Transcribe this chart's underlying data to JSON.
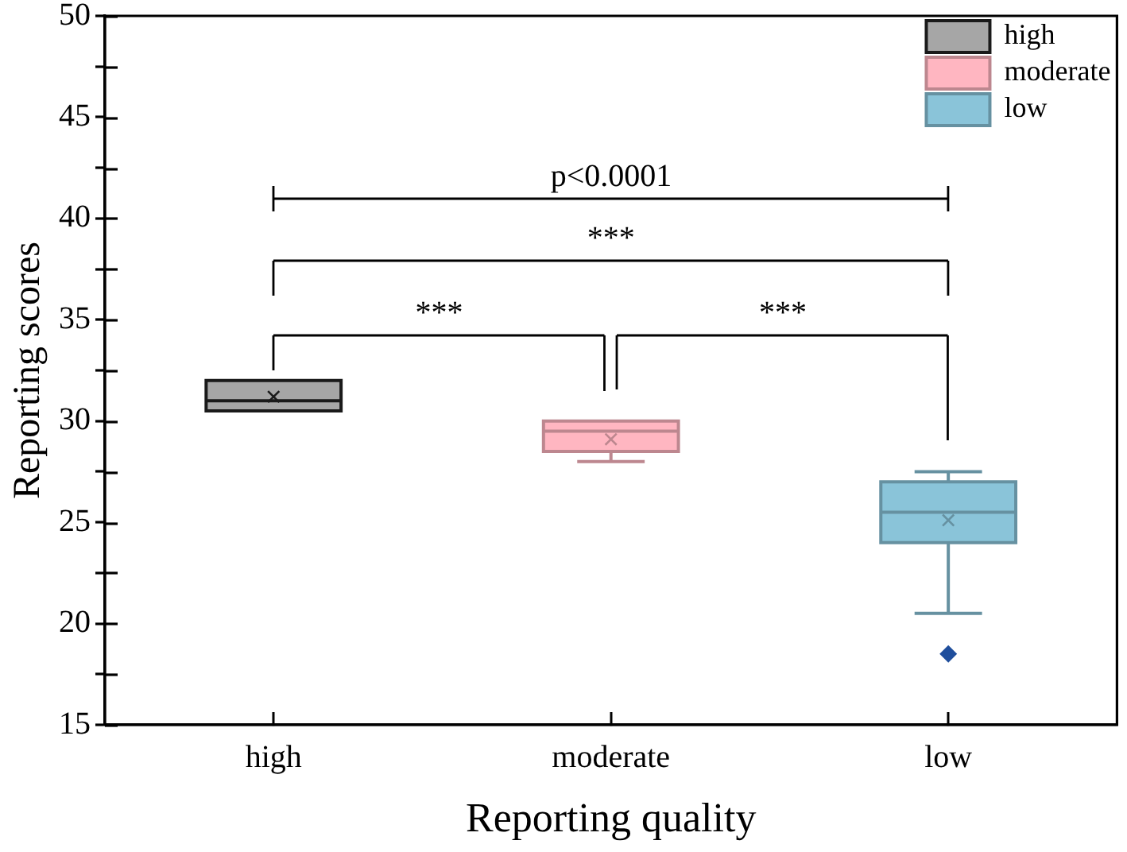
{
  "chart_data": {
    "type": "box",
    "xlabel": "Reporting quality",
    "ylabel": "Reporting scores",
    "categories": [
      "high",
      "moderate",
      "low"
    ],
    "series": [
      {
        "name": "high",
        "color": "#a6a6a6",
        "boxes": [
          {
            "low": 30.5,
            "q1": 30.5,
            "median": 31,
            "q3": 32,
            "high": 32,
            "mean": 31.2
          },
          null,
          null
        ]
      },
      {
        "name": "moderate",
        "color": "#ffb6c1",
        "boxes": [
          null,
          {
            "low": 28,
            "q1": 28.5,
            "median": 29.5,
            "q3": 30,
            "high": 30,
            "mean": 29.1
          },
          null
        ]
      },
      {
        "name": "low",
        "color": "#8ac4d9",
        "boxes": [
          null,
          null,
          {
            "low": 20.5,
            "q1": 24,
            "median": 25.5,
            "q3": 27,
            "high": 27.5,
            "mean": 25.1,
            "outliers": [
              18.5
            ]
          }
        ]
      }
    ],
    "ylim": [
      15,
      50
    ],
    "yticks": [
      15,
      {
        "value": 17.5,
        "label": null
      },
      20,
      {
        "value": 22.5,
        "label": null
      },
      25,
      {
        "value": 27.5,
        "label": null
      },
      30,
      {
        "value": 32.5,
        "label": null
      },
      35,
      {
        "value": 37.5,
        "label": null
      },
      40,
      {
        "value": 42.5,
        "label": null
      },
      45,
      {
        "value": 47.5,
        "label": null
      },
      50
    ],
    "annotations": [
      "p<0.0001",
      "***",
      "***",
      "***"
    ],
    "legend": "top right"
  }
}
